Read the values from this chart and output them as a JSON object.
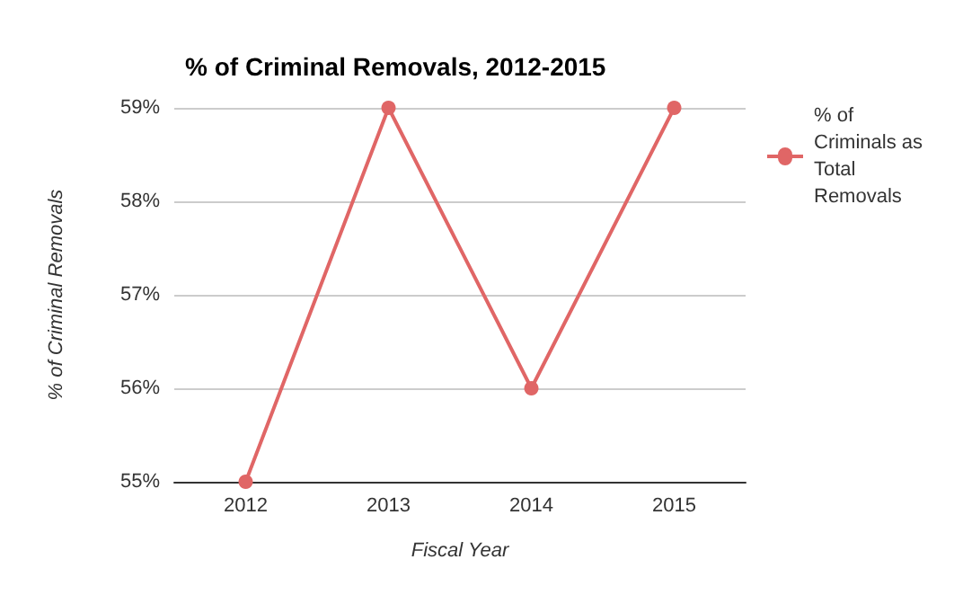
{
  "chart_data": {
    "type": "line",
    "title": "% of Criminal Removals, 2012-2015",
    "xlabel": "Fiscal Year",
    "ylabel": "% of Criminal Removals",
    "categories": [
      "2012",
      "2013",
      "2014",
      "2015"
    ],
    "series": [
      {
        "name": "% of Criminals as Total Removals",
        "color": "#e06666",
        "values": [
          55,
          59,
          56,
          59
        ]
      }
    ],
    "ylim": [
      55,
      59
    ],
    "yticks": [
      {
        "value": 55,
        "label": "55%"
      },
      {
        "value": 56,
        "label": "56%"
      },
      {
        "value": 57,
        "label": "57%"
      },
      {
        "value": 58,
        "label": "58%"
      },
      {
        "value": 59,
        "label": "59%"
      }
    ],
    "grid": "y",
    "legend": "top right",
    "marker": "circle",
    "line_style": "solid"
  }
}
